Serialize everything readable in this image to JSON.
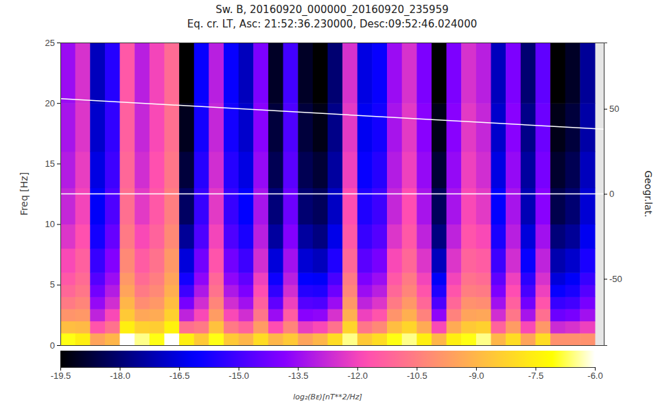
{
  "chart_data": {
    "type": "heatmap",
    "title": "Sw. B, 20160920_000000_20160920_235959",
    "subtitle": "Eq. cr. LT, Asc: 21:52:36.230000, Desc:09:52:46.024000",
    "ylabel": "Freq [Hz]",
    "y2label": "Geogr.lat.",
    "xlim": [
      0,
      36.6
    ],
    "ylim": [
      0,
      25
    ],
    "yticks": [
      0,
      5,
      10,
      15,
      20,
      25
    ],
    "y2lim": [
      -89,
      89
    ],
    "y2ticks": [
      -50,
      0,
      50
    ],
    "tick_labels": "y",
    "grid": false,
    "x_bins": [
      0,
      1,
      2,
      3,
      4,
      5,
      6,
      7,
      8,
      9,
      10,
      11,
      12,
      13,
      14,
      15,
      16,
      17,
      18,
      19,
      20,
      21,
      22,
      23,
      24,
      25,
      26,
      27,
      28,
      29,
      30,
      31,
      32,
      33,
      34,
      35,
      36
    ],
    "y_bins": [
      0,
      1,
      2,
      3,
      4,
      5,
      6,
      8,
      10,
      13,
      16,
      20,
      25
    ],
    "cells": [
      [
        -7.0,
        -8.8,
        -9.9,
        -10.6,
        -11.1,
        -11.5,
        -11.9,
        -12.4,
        -12.8,
        -13.1,
        -13.3,
        -13.5
      ],
      [
        -7.5,
        -8.9,
        -9.8,
        -10.3,
        -10.7,
        -11.0,
        -11.3,
        -11.7,
        -12.0,
        -12.2,
        -12.4,
        -12.5
      ],
      [
        -9.5,
        -11.6,
        -12.9,
        -13.6,
        -14.2,
        -14.7,
        -15.2,
        -15.8,
        -16.2,
        -16.5,
        -16.8,
        -17.0
      ],
      [
        -9.0,
        -10.8,
        -11.9,
        -12.6,
        -13.1,
        -13.5,
        -13.9,
        -14.4,
        -14.8,
        -15.1,
        -15.3,
        -15.5
      ],
      [
        -6.0,
        -7.5,
        -8.5,
        -9.0,
        -9.5,
        -9.8,
        -10.2,
        -10.6,
        -10.9,
        -11.1,
        -11.3,
        -11.5
      ],
      [
        -6.5,
        -8.3,
        -9.4,
        -10.1,
        -10.6,
        -11.0,
        -11.4,
        -11.9,
        -12.3,
        -12.6,
        -12.8,
        -13.0
      ],
      [
        -7.0,
        -8.4,
        -9.3,
        -9.8,
        -10.2,
        -10.5,
        -10.8,
        -11.2,
        -11.5,
        -11.7,
        -11.9,
        -12.0
      ],
      [
        -6.0,
        -7.4,
        -8.3,
        -8.8,
        -9.2,
        -9.5,
        -9.8,
        -10.2,
        -10.5,
        -10.7,
        -10.9,
        -11.0
      ],
      [
        -7.5,
        -10.9,
        -12.9,
        -14.1,
        -15.1,
        -15.8,
        -16.6,
        -17.5,
        -18.2,
        -18.7,
        -19.1,
        -19.5
      ],
      [
        -8.5,
        -10.6,
        -11.9,
        -12.6,
        -13.2,
        -13.7,
        -14.2,
        -14.8,
        -15.2,
        -15.5,
        -15.8,
        -16.0
      ],
      [
        -7.0,
        -8.7,
        -9.7,
        -10.3,
        -10.8,
        -11.1,
        -11.6,
        -12.0,
        -12.3,
        -12.6,
        -12.8,
        -13.0
      ],
      [
        -8.5,
        -10.6,
        -11.9,
        -12.6,
        -13.2,
        -13.7,
        -14.2,
        -14.8,
        -15.2,
        -15.5,
        -15.8,
        -16.0
      ],
      [
        -9.0,
        -11.2,
        -12.6,
        -13.4,
        -14.0,
        -14.5,
        -15.1,
        -15.7,
        -16.1,
        -16.5,
        -16.8,
        -17.0
      ],
      [
        -8.0,
        -9.7,
        -10.7,
        -11.3,
        -11.8,
        -12.1,
        -12.6,
        -13.0,
        -13.3,
        -13.6,
        -13.8,
        -14.0
      ],
      [
        -9.0,
        -11.8,
        -13.5,
        -14.5,
        -15.3,
        -15.9,
        -16.6,
        -17.4,
        -17.9,
        -18.4,
        -18.7,
        -19.0
      ],
      [
        -8.5,
        -10.3,
        -11.4,
        -12.1,
        -12.6,
        -13.0,
        -13.4,
        -13.9,
        -14.3,
        -14.6,
        -14.8,
        -15.0
      ],
      [
        -9.5,
        -12.2,
        -13.8,
        -14.7,
        -15.5,
        -16.1,
        -16.7,
        -17.4,
        -18.0,
        -18.4,
        -18.7,
        -19.0
      ],
      [
        -9.0,
        -11.9,
        -13.7,
        -14.8,
        -15.6,
        -16.2,
        -17.0,
        -17.8,
        -18.3,
        -18.8,
        -19.2,
        -19.5
      ],
      [
        -8.0,
        -10.8,
        -12.5,
        -13.5,
        -14.3,
        -14.9,
        -15.6,
        -16.4,
        -16.9,
        -17.4,
        -17.7,
        -18.0
      ],
      [
        -6.5,
        -8.2,
        -9.2,
        -9.8,
        -10.3,
        -10.6,
        -11.1,
        -11.5,
        -11.8,
        -12.1,
        -12.3,
        -12.5
      ],
      [
        -8.5,
        -10.7,
        -12.1,
        -12.9,
        -13.5,
        -14.0,
        -14.6,
        -15.2,
        -15.6,
        -16.0,
        -16.3,
        -16.5
      ],
      [
        -8.0,
        -10.2,
        -11.6,
        -12.4,
        -13.0,
        -13.5,
        -14.1,
        -14.7,
        -15.1,
        -15.5,
        -15.8,
        -16.0
      ],
      [
        -7.0,
        -8.8,
        -9.9,
        -10.6,
        -11.1,
        -11.5,
        -11.9,
        -12.4,
        -12.8,
        -13.1,
        -13.3,
        -13.5
      ],
      [
        -6.5,
        -8.2,
        -9.2,
        -9.8,
        -10.3,
        -10.6,
        -11.1,
        -11.5,
        -11.8,
        -12.1,
        -12.3,
        -12.5
      ],
      [
        -7.5,
        -9.3,
        -10.4,
        -11.1,
        -11.6,
        -12.0,
        -12.4,
        -12.9,
        -13.3,
        -13.6,
        -13.8,
        -14.0
      ],
      [
        -9.0,
        -11.9,
        -13.7,
        -14.8,
        -15.6,
        -16.2,
        -17.0,
        -17.8,
        -18.3,
        -18.8,
        -19.2,
        -19.5
      ],
      [
        -7.5,
        -9.3,
        -10.4,
        -11.1,
        -11.6,
        -12.0,
        -12.4,
        -12.9,
        -13.3,
        -13.6,
        -13.8,
        -14.0
      ],
      [
        -7.0,
        -8.5,
        -9.5,
        -10.0,
        -10.5,
        -10.8,
        -11.2,
        -11.6,
        -11.9,
        -12.1,
        -12.3,
        -12.5
      ],
      [
        -6.5,
        -8.3,
        -9.4,
        -10.1,
        -10.6,
        -11.0,
        -11.4,
        -11.9,
        -12.3,
        -12.6,
        -12.8,
        -13.0
      ],
      [
        -9.0,
        -11.2,
        -12.6,
        -13.4,
        -14.0,
        -14.5,
        -15.1,
        -15.7,
        -16.1,
        -16.5,
        -16.8,
        -17.0
      ],
      [
        -8.0,
        -9.7,
        -10.7,
        -11.3,
        -11.8,
        -12.1,
        -12.6,
        -13.0,
        -13.3,
        -13.6,
        -13.8,
        -14.0
      ],
      [
        -9.5,
        -11.9,
        -13.3,
        -14.2,
        -14.9,
        -15.4,
        -16.0,
        -16.6,
        -17.1,
        -17.4,
        -17.7,
        -18.0
      ],
      [
        -8.0,
        -9.8,
        -10.9,
        -11.6,
        -12.1,
        -12.5,
        -12.9,
        -13.4,
        -13.8,
        -14.1,
        -14.3,
        -14.5
      ],
      [
        -10.0,
        -12.7,
        -14.3,
        -15.2,
        -16.0,
        -16.6,
        -17.2,
        -17.9,
        -18.5,
        -18.9,
        -19.2,
        -19.5
      ],
      [
        -10.0,
        -12.5,
        -14.1,
        -15.0,
        -15.7,
        -16.2,
        -16.8,
        -17.5,
        -18.0,
        -18.4,
        -18.7,
        -19.0
      ],
      [
        -10.0,
        -12.1,
        -13.4,
        -14.1,
        -14.7,
        -15.2,
        -15.7,
        -16.3,
        -16.7,
        -17.0,
        -17.3,
        -17.5
      ]
    ],
    "colorbar": {
      "range": [
        -19.5,
        -6.0
      ],
      "ticks": [
        -19.5,
        {
          "value": -18,
          "label": "-18.0"
        },
        -16.5,
        {
          "value": -15,
          "label": "-15.0"
        },
        -13.5,
        {
          "value": -12,
          "label": "-12.0"
        },
        -10.5,
        {
          "value": -9,
          "label": "-9.0"
        },
        -7.5,
        {
          "value": -6,
          "label": "-6.0"
        }
      ],
      "label": "log₂(Bᴇ)[nT**2/Hz]"
    },
    "series": [
      {
        "type": "line",
        "color": "#ffffff",
        "axis": "y2",
        "x": [
          0,
          36.6
        ],
        "values": [
          56,
          38
        ]
      },
      {
        "type": "line",
        "color": "#ffffff",
        "axis": "y2",
        "x": [
          0,
          36.6
        ],
        "values": [
          0,
          0
        ]
      }
    ]
  }
}
